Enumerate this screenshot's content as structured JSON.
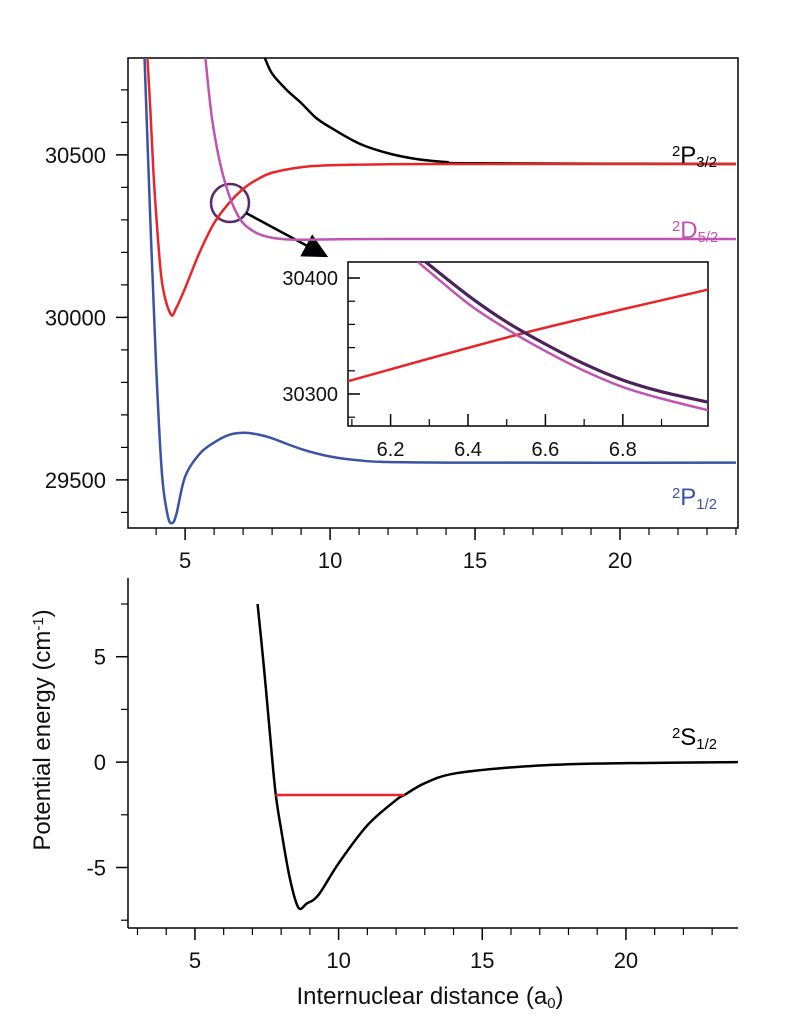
{
  "chart_data": [
    {
      "type": "line",
      "frame": true,
      "ticks_dir": "out",
      "font": 22,
      "xlim": [
        3.03,
        24.07
      ],
      "xticks": [
        5,
        10,
        15,
        20
      ],
      "xminor": [
        4,
        6,
        7,
        8,
        9,
        11,
        12,
        13,
        14,
        16,
        17,
        18,
        19,
        21,
        22,
        23,
        24
      ],
      "ylim": [
        29352,
        30798
      ],
      "yticks": [
        29500,
        30000,
        30500
      ],
      "yminor": [
        29400,
        29600,
        29700,
        29800,
        29900,
        30100,
        30200,
        30300,
        30400,
        30600,
        30700
      ],
      "series": [
        {
          "label": [
            "2",
            "P",
            "3/2"
          ],
          "color": "#000000",
          "x": [
            7.75,
            8,
            8.5,
            9,
            9.5,
            10,
            11,
            12,
            13,
            14,
            15,
            24
          ],
          "values": [
            30798,
            30750,
            30700,
            30660,
            30615,
            30585,
            30535,
            30505,
            30487,
            30478,
            30474,
            30472
          ]
        },
        {
          "color": "#e8262a",
          "x": [
            3.7,
            3.8,
            3.9,
            4.0,
            4.2,
            4.5,
            4.7,
            5.0,
            5.5,
            6.0,
            6.5,
            7,
            7.5,
            8,
            9,
            10,
            12,
            15,
            24
          ],
          "values": [
            30798,
            30640,
            30460,
            30320,
            30110,
            30010,
            30030,
            30090,
            30200,
            30290,
            30350,
            30395,
            30425,
            30445,
            30462,
            30468,
            30471,
            30472,
            30472
          ]
        },
        {
          "label": [
            "2",
            "D",
            "5/2"
          ],
          "color": "#c054b0",
          "x": [
            5.7,
            5.9,
            6.1,
            6.3,
            6.5,
            6.7,
            7,
            7.5,
            8,
            8.5,
            9,
            10,
            12,
            24
          ],
          "values": [
            30798,
            30630,
            30520,
            30440,
            30380,
            30335,
            30290,
            30258,
            30245,
            30240,
            30239,
            30240,
            30241,
            30241
          ]
        },
        {
          "label": [
            "2",
            "P",
            "1/2"
          ],
          "color": "#3a53a4",
          "x": [
            3.6,
            3.8,
            4.0,
            4.2,
            4.4,
            4.55,
            4.7,
            5,
            5.5,
            6,
            6.5,
            7,
            7.5,
            8,
            9,
            10,
            11,
            12,
            15,
            24
          ],
          "values": [
            30798,
            30300,
            29850,
            29520,
            29390,
            29367,
            29395,
            29510,
            29580,
            29615,
            29638,
            29645,
            29640,
            29628,
            29595,
            29572,
            29560,
            29555,
            29553,
            29553
          ]
        }
      ]
    },
    {
      "type": "line",
      "frame": true,
      "ticks_dir": "in",
      "font": 20,
      "xlim": [
        6.09,
        7.02
      ],
      "xticks": [
        6.2,
        6.4,
        6.6,
        6.8
      ],
      "xminor": [
        6.1,
        6.3,
        6.5,
        6.7,
        6.9
      ],
      "ylim": [
        30272.4,
        30413.8
      ],
      "yticks": [
        30300,
        30400
      ],
      "yminor": [
        30280,
        30320,
        30340,
        30360,
        30380
      ],
      "series": [
        {
          "color": "#e8262a",
          "x": [
            6.09,
            6.55,
            7.02
          ],
          "values": [
            30311,
            30353,
            30390
          ]
        },
        {
          "color": "#c054b0",
          "x": [
            6.27,
            6.4,
            6.5,
            6.6,
            6.7,
            6.8,
            6.9,
            7.02
          ],
          "values": [
            30414,
            30378,
            30356,
            30337,
            30320,
            30306,
            30296,
            30286
          ]
        },
        {
          "color": "#4a235a",
          "x": [
            6.29,
            6.4,
            6.5,
            6.6,
            6.7,
            6.8,
            6.9,
            7.02
          ],
          "values": [
            30414,
            30385,
            30362,
            30343,
            30326,
            30312,
            30302,
            30293
          ]
        }
      ]
    },
    {
      "type": "line",
      "frame": false,
      "ticks_dir": "out",
      "font": 22,
      "xlim": [
        2.67,
        23.9
      ],
      "xticks": [
        5,
        10,
        15,
        20
      ],
      "xminor": [
        3,
        4,
        6,
        7,
        8,
        9,
        11,
        12,
        13,
        14,
        16,
        17,
        18,
        19,
        21,
        22,
        23
      ],
      "ylim": [
        -7.87,
        7.5
      ],
      "yticks": [
        -5,
        0,
        5
      ],
      "yminor": [
        -7.5,
        -2.5,
        2.5,
        7.5
      ],
      "ylabel": [
        "Potential energy (cm",
        "-1",
        ")"
      ],
      "xlabel": [
        "Internuclear distance (a",
        "0",
        ")"
      ],
      "series": [
        {
          "label": [
            "2",
            "S",
            "1/2"
          ],
          "color": "#000000",
          "x": [
            7.18,
            7.4,
            7.6,
            7.8,
            8.0,
            8.3,
            8.6,
            8.9,
            9.3,
            10,
            11,
            12,
            12.3,
            13,
            14,
            16,
            18,
            20,
            23.9
          ],
          "values": [
            7.5,
            4.5,
            1.5,
            -1.4,
            -3.2,
            -5.5,
            -6.9,
            -6.7,
            -6.3,
            -4.8,
            -3.0,
            -1.8,
            -1.55,
            -1.0,
            -0.55,
            -0.25,
            -0.1,
            -0.05,
            0
          ]
        },
        {
          "color": "#e8262a",
          "x": [
            7.8,
            12.3
          ],
          "values": [
            -1.56,
            -1.56
          ]
        }
      ]
    }
  ]
}
